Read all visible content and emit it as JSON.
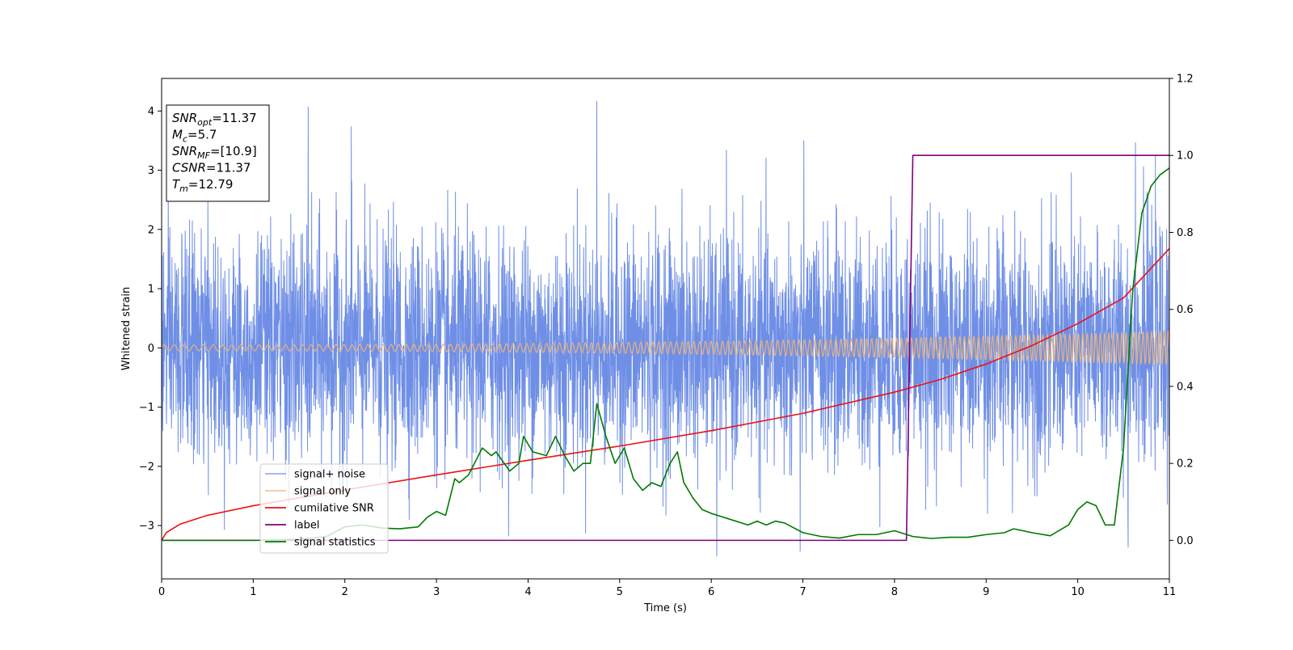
{
  "chart_data": {
    "type": "line",
    "xlabel": "Time (s)",
    "ylabel": "Whitened strain",
    "xlim": [
      0,
      11
    ],
    "ylim": [
      -3.9,
      4.55
    ],
    "y2lim": [
      -0.1,
      1.2
    ],
    "x_ticks": [
      0,
      1,
      2,
      3,
      4,
      5,
      6,
      7,
      8,
      9,
      10,
      11
    ],
    "x_tick_labels": [
      "0",
      "1",
      "2",
      "3",
      "4",
      "5",
      "6",
      "7",
      "8",
      "9",
      "10",
      "11"
    ],
    "y_ticks": [
      -3,
      -2,
      -1,
      0,
      1,
      2,
      3,
      4
    ],
    "y_tick_labels": [
      "−3",
      "−2",
      "−1",
      "0",
      "1",
      "2",
      "3",
      "4"
    ],
    "y2_ticks": [
      0.0,
      0.2,
      0.4,
      0.6,
      0.8,
      1.0,
      1.2
    ],
    "y2_tick_labels": [
      "0.0",
      "0.2",
      "0.4",
      "0.6",
      "0.8",
      "1.0",
      "1.2"
    ],
    "grid": false,
    "legend_position": "lower-left",
    "stats_box": [
      {
        "main": "SNR",
        "sub": "opt",
        "value": "=11.37"
      },
      {
        "main": "M",
        "sub": "c",
        "value": "=5.7"
      },
      {
        "main": "SNR",
        "sub": "MF",
        "value": "=[10.9]"
      },
      {
        "main": "CSNR",
        "sub": "",
        "value": "=11.37"
      },
      {
        "main": "T",
        "sub": "m",
        "value": "=12.79"
      }
    ],
    "series": [
      {
        "name": "signal+ noise",
        "axis": "left",
        "color": "#6f8fe6",
        "kind": "noisy-strain",
        "duration": 11,
        "sample_rate": 400,
        "noise_std": 0.95,
        "noise_range": [
          -3.52,
          4.17
        ],
        "notable_peaks": [
          [
            1.6,
            4.07
          ],
          [
            4.75,
            4.17
          ],
          [
            2.07,
            3.74
          ],
          [
            6.06,
            -3.52
          ],
          [
            6.97,
            -3.44
          ],
          [
            10.55,
            -3.37
          ],
          [
            10.63,
            3.47
          ]
        ]
      },
      {
        "name": "signal only",
        "axis": "left",
        "color": "#e8b27d",
        "kind": "chirp",
        "amplitude_start": 0.05,
        "amplitude_end": 0.28,
        "frequency_start": 9,
        "frequency_end": 22
      },
      {
        "name": "cumilative SNR",
        "axis": "right",
        "color": "#ee1111",
        "x": [
          0,
          0.05,
          0.2,
          0.5,
          1,
          2,
          3,
          4,
          5,
          6,
          7,
          8,
          8.5,
          9,
          9.5,
          10,
          10.5,
          11
        ],
        "y": [
          0.0,
          0.02,
          0.042,
          0.065,
          0.09,
          0.131,
          0.17,
          0.208,
          0.245,
          0.285,
          0.33,
          0.385,
          0.418,
          0.458,
          0.506,
          0.563,
          0.63,
          0.758
        ]
      },
      {
        "name": "label",
        "axis": "right",
        "color": "#800080",
        "x": [
          0,
          8.13,
          8.2,
          11
        ],
        "y": [
          0.0,
          0.0,
          1.0,
          1.0
        ]
      },
      {
        "name": "signal statistics",
        "axis": "right",
        "color": "#007a00",
        "x": [
          0,
          1,
          1.5,
          1.8,
          2.0,
          2.2,
          2.4,
          2.6,
          2.8,
          2.9,
          3.0,
          3.1,
          3.2,
          3.25,
          3.35,
          3.5,
          3.6,
          3.65,
          3.8,
          3.9,
          3.95,
          4.05,
          4.2,
          4.3,
          4.4,
          4.5,
          4.6,
          4.68,
          4.75,
          4.85,
          4.95,
          5.05,
          5.15,
          5.25,
          5.35,
          5.45,
          5.55,
          5.63,
          5.7,
          5.8,
          5.9,
          6.0,
          6.2,
          6.4,
          6.5,
          6.6,
          6.7,
          6.8,
          7.0,
          7.2,
          7.4,
          7.6,
          7.8,
          8.0,
          8.2,
          8.4,
          8.6,
          8.8,
          9.0,
          9.2,
          9.3,
          9.5,
          9.7,
          9.9,
          10.0,
          10.1,
          10.2,
          10.3,
          10.4,
          10.5,
          10.6,
          10.7,
          10.8,
          10.9,
          11
        ],
        "y": [
          0.0,
          0.0,
          0.003,
          0.01,
          0.035,
          0.04,
          0.032,
          0.03,
          0.035,
          0.06,
          0.075,
          0.065,
          0.16,
          0.15,
          0.17,
          0.24,
          0.22,
          0.23,
          0.18,
          0.2,
          0.27,
          0.23,
          0.22,
          0.27,
          0.22,
          0.18,
          0.2,
          0.2,
          0.355,
          0.27,
          0.2,
          0.24,
          0.16,
          0.13,
          0.15,
          0.14,
          0.2,
          0.23,
          0.15,
          0.11,
          0.08,
          0.07,
          0.055,
          0.04,
          0.05,
          0.04,
          0.05,
          0.045,
          0.02,
          0.01,
          0.006,
          0.015,
          0.015,
          0.025,
          0.01,
          0.005,
          0.008,
          0.008,
          0.015,
          0.02,
          0.03,
          0.02,
          0.012,
          0.04,
          0.08,
          0.1,
          0.09,
          0.04,
          0.04,
          0.24,
          0.65,
          0.85,
          0.92,
          0.95,
          0.967
        ]
      }
    ]
  }
}
